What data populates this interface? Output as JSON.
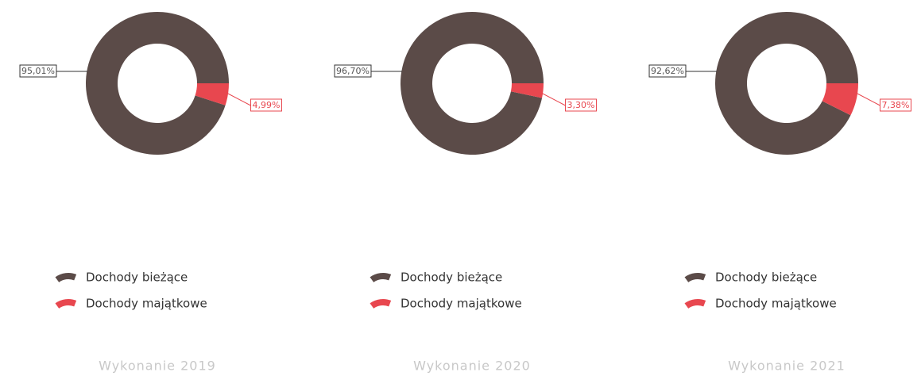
{
  "chart_data": [
    {
      "type": "pie",
      "title": "Wykonanie 2019",
      "categories": [
        "Dochody bieżące",
        "Dochody majątkowe"
      ],
      "values": [
        95.01,
        4.99
      ],
      "value_labels": [
        "95,01%",
        "4,99%"
      ],
      "colors": [
        "#5b4b48",
        "#e8474f"
      ],
      "donut": true
    },
    {
      "type": "pie",
      "title": "Wykonanie 2020",
      "categories": [
        "Dochody bieżące",
        "Dochody majątkowe"
      ],
      "values": [
        96.7,
        3.3
      ],
      "value_labels": [
        "96,70%",
        "3,30%"
      ],
      "colors": [
        "#5b4b48",
        "#e8474f"
      ],
      "donut": true
    },
    {
      "type": "pie",
      "title": "Wykonanie 2021",
      "categories": [
        "Dochody bieżące",
        "Dochody majątkowe"
      ],
      "values": [
        92.62,
        7.38
      ],
      "value_labels": [
        "92,62%",
        "7,38%"
      ],
      "colors": [
        "#5b4b48",
        "#e8474f"
      ],
      "donut": true
    }
  ]
}
